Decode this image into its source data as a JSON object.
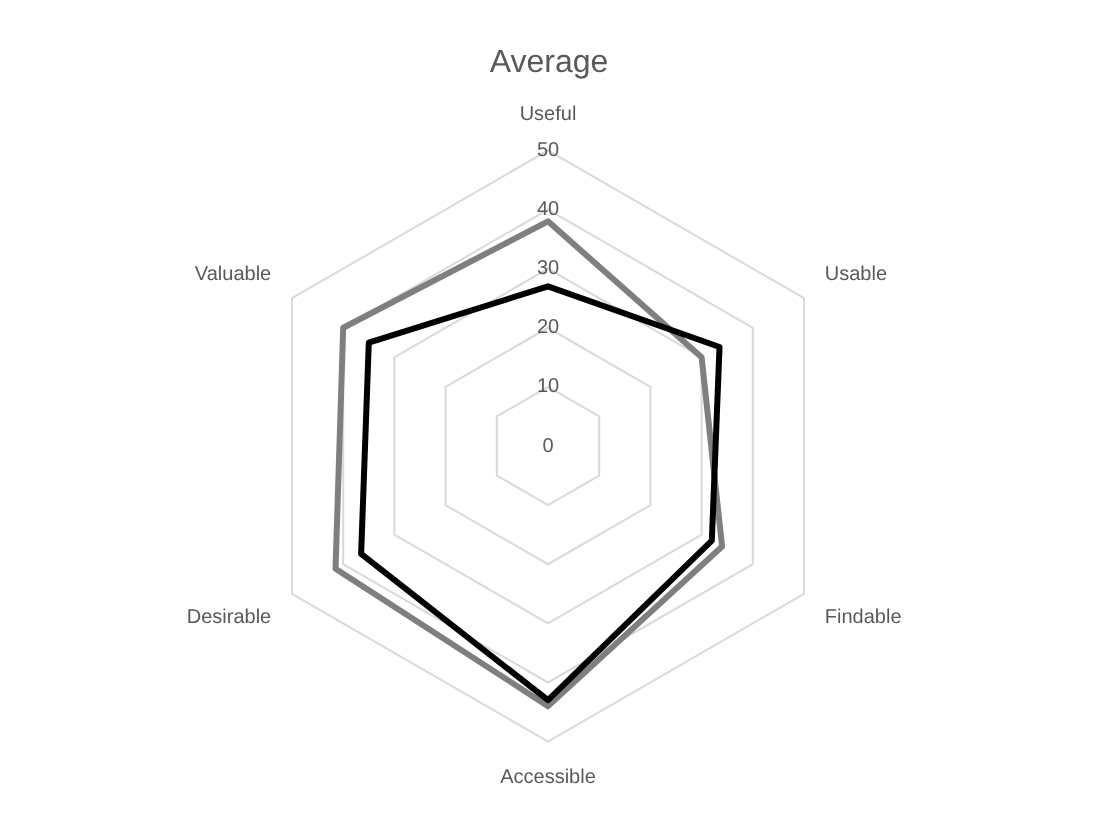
{
  "chart_data": {
    "type": "radar",
    "title": "Average",
    "categories": [
      "Useful",
      "Usable",
      "Findable",
      "Accessible",
      "Desirable",
      "Valuable"
    ],
    "series": [
      {
        "color": "#000000",
        "values": [
          27,
          33.5,
          32,
          43,
          36.5,
          35
        ]
      },
      {
        "color": "#7f7f7f",
        "values": [
          38,
          30,
          34,
          44,
          41.5,
          40
        ]
      }
    ],
    "ylim": [
      0,
      50
    ],
    "yticks": [
      0,
      10,
      20,
      30,
      40,
      50
    ],
    "grid": true,
    "legend": false
  }
}
